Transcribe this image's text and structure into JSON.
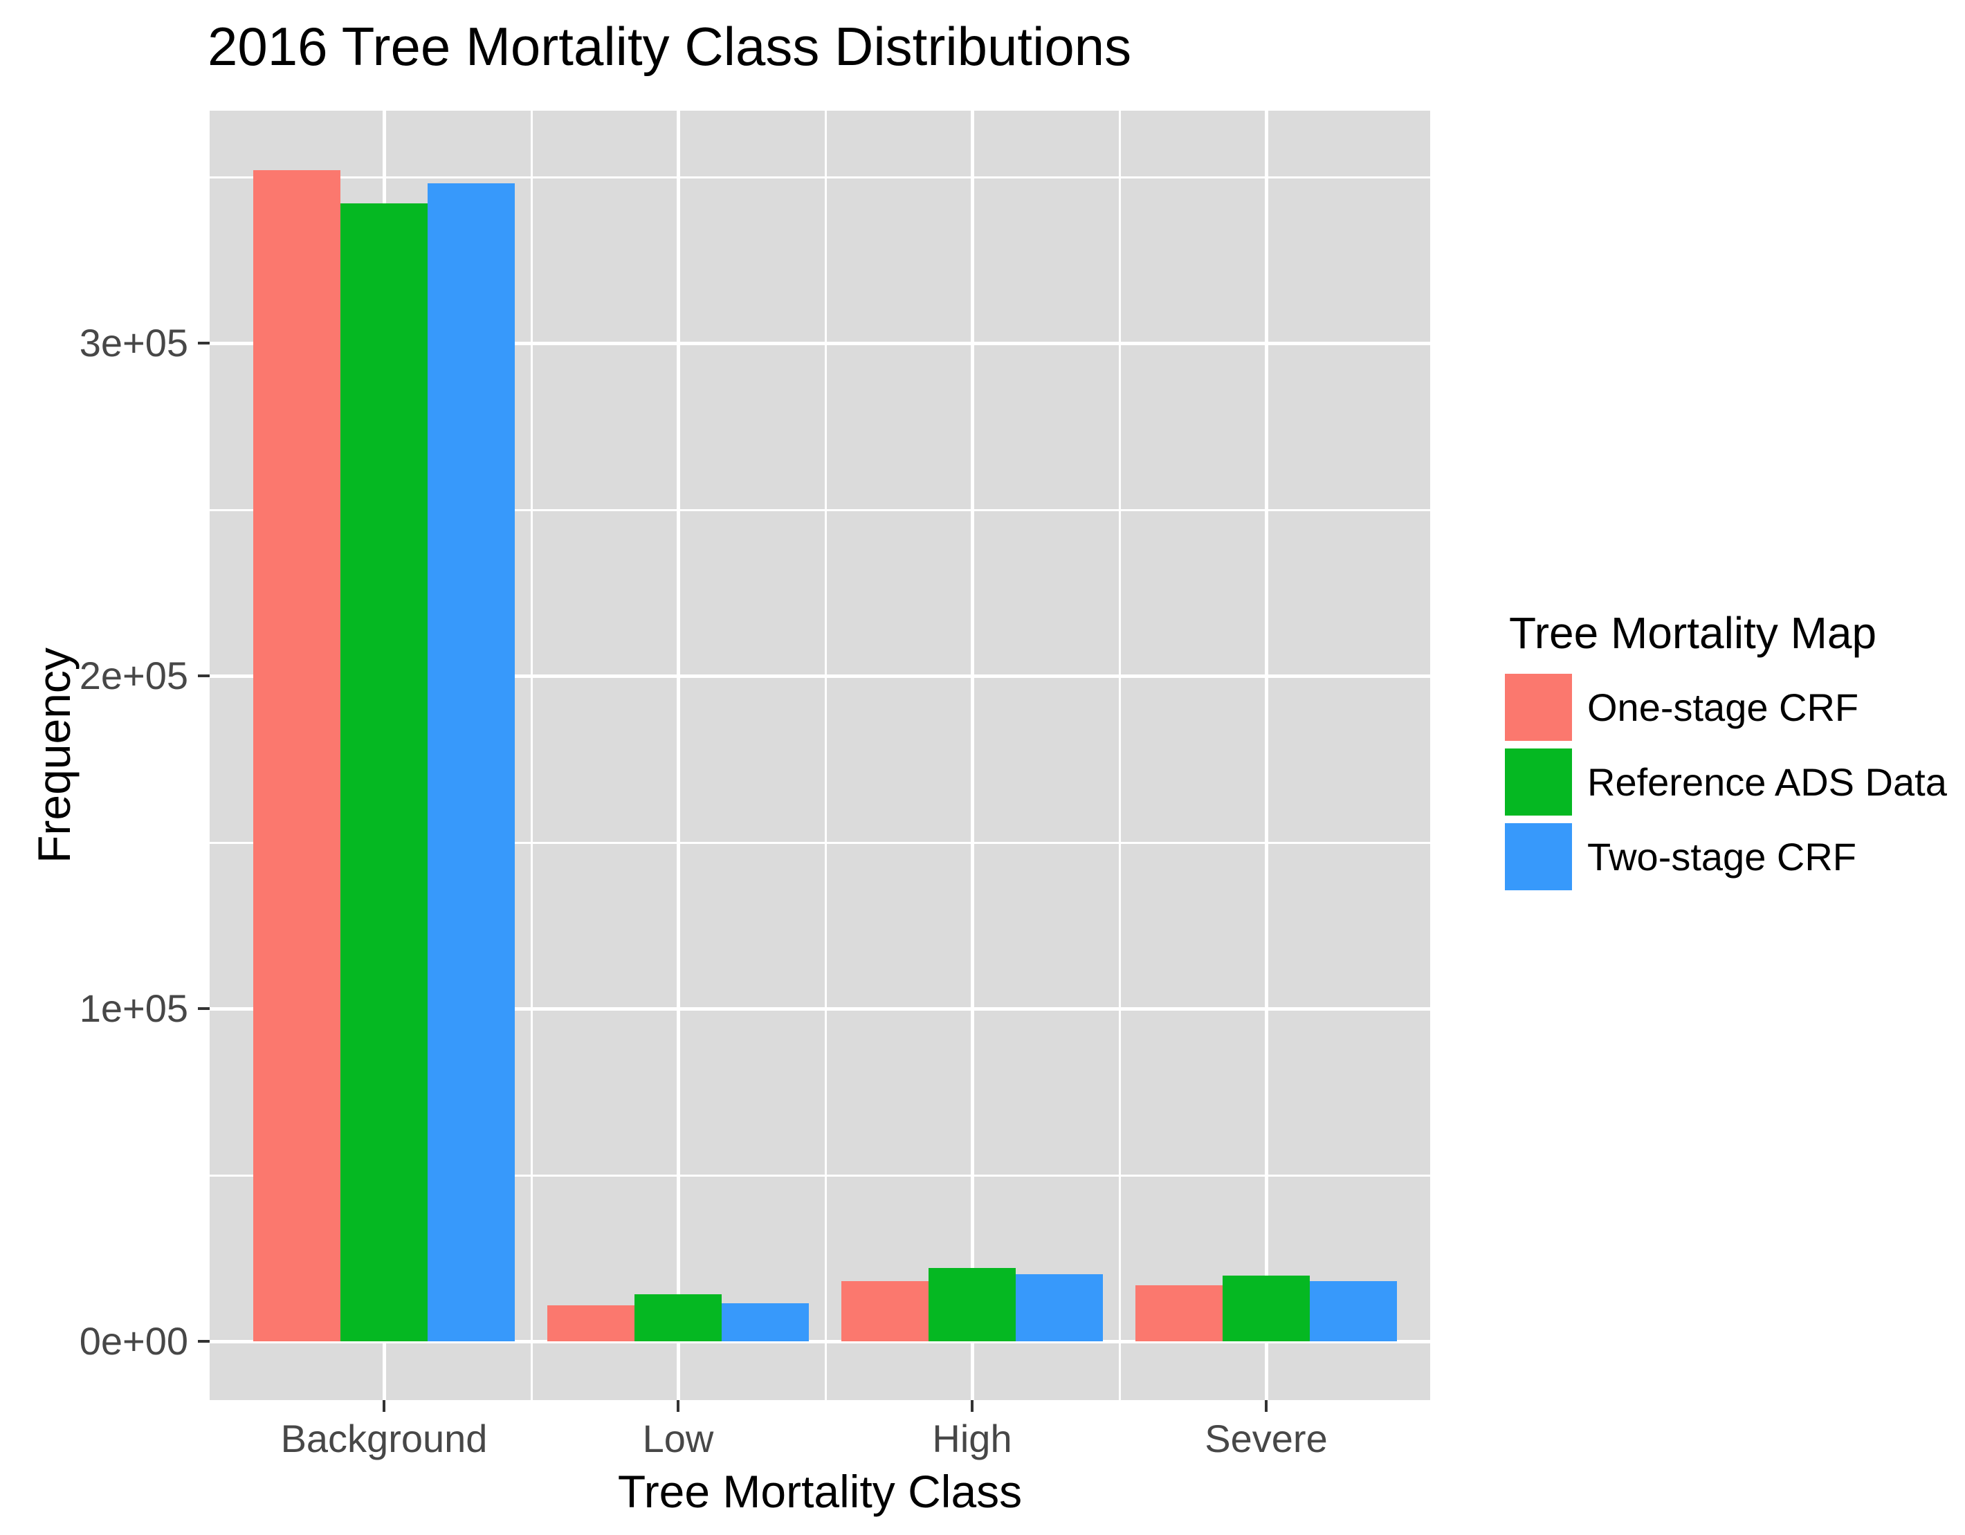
{
  "chart_data": {
    "type": "bar",
    "title": "2016 Tree Mortality Class Distributions",
    "xlabel": "Tree Mortality Class",
    "ylabel": "Frequency",
    "categories": [
      "Background",
      "Low",
      "High",
      "Severe"
    ],
    "series": [
      {
        "name": "One-stage CRF",
        "color": "#FB786E",
        "values": [
          352000,
          10800,
          18100,
          16800
        ]
      },
      {
        "name": "Reference ADS Data",
        "color": "#05B822",
        "values": [
          342000,
          14100,
          22000,
          19800
        ]
      },
      {
        "name": "Two-stage CRF",
        "color": "#3799FB",
        "values": [
          348000,
          11400,
          20200,
          18100
        ]
      }
    ],
    "y_ticks": [
      {
        "value": 0,
        "label": "0e+00"
      },
      {
        "value": 100000,
        "label": "1e+05"
      },
      {
        "value": 200000,
        "label": "2e+05"
      },
      {
        "value": 300000,
        "label": "3e+05"
      }
    ],
    "y_minor_ticks": [
      50000,
      150000,
      250000,
      350000
    ],
    "ylim": [
      -17700,
      369900
    ],
    "grid": true,
    "legend_title": "Tree Mortality Map",
    "legend_position": "right",
    "panel_bg": "#DBDBDB",
    "grid_color": "#FFFFFF",
    "axis_text_color": "#474747"
  }
}
